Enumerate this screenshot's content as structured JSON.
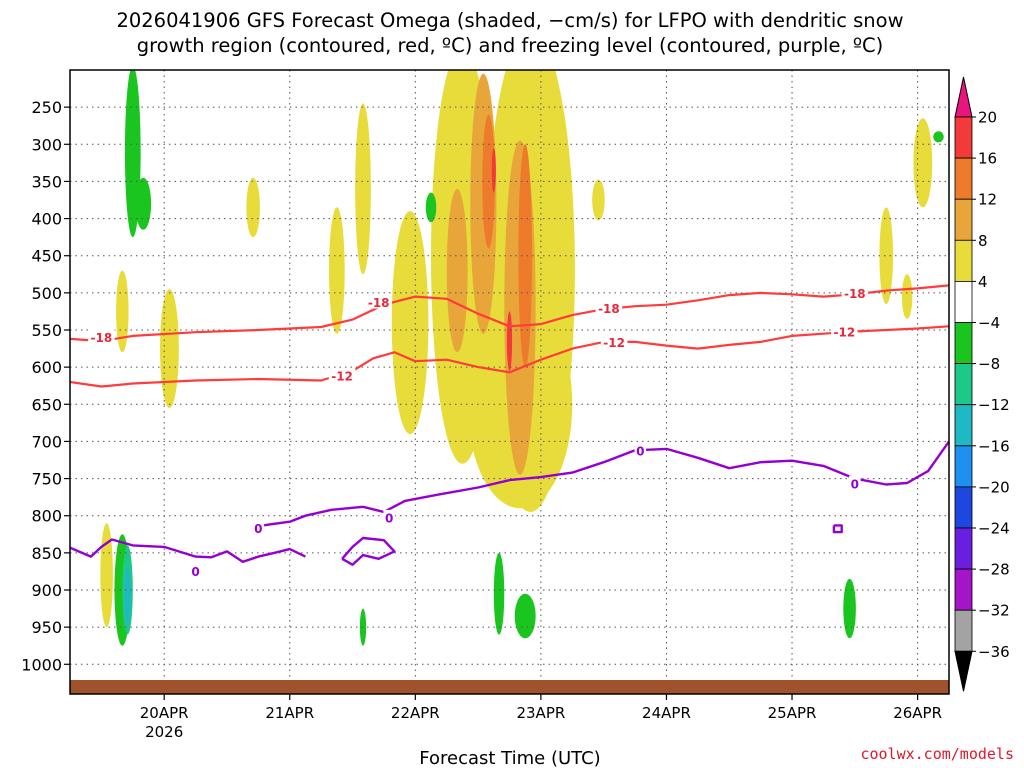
{
  "title": {
    "line1": "2026041906 GFS Forecast Omega (shaded, −cm/s) for LFPO with dendritic snow",
    "line2": "growth region (contoured, red, ºC) and freezing level (contoured, purple, ºC)"
  },
  "xlabel": "Forecast Time (UTC)",
  "credit": "coolwx.com/models",
  "colors": {
    "frame": "#000000",
    "grid": "#555555",
    "ground": "#a0522d",
    "dgz_line": "#ff3b3b",
    "dgz_label": "#e8283a",
    "freezing_line": "#9400d3"
  },
  "chart_data": {
    "type": "heatmap",
    "title": "2026041906 GFS Forecast Omega (shaded, −cm/s) for LFPO with dendritic snow growth region (contoured, red, ºC) and freezing level (contoured, purple, ºC)",
    "xlabel": "Forecast Time (UTC)",
    "ylabel": "Pressure (hPa)",
    "x_range_hours": [
      0,
      168
    ],
    "y_range_hpa": [
      200,
      1040
    ],
    "x_ticks": [
      {
        "label": "20APR",
        "sub": "2026",
        "hour": 18
      },
      {
        "label": "21APR",
        "hour": 42
      },
      {
        "label": "22APR",
        "hour": 66
      },
      {
        "label": "23APR",
        "hour": 90
      },
      {
        "label": "24APR",
        "hour": 114
      },
      {
        "label": "25APR",
        "hour": 138
      },
      {
        "label": "26APR",
        "hour": 162
      }
    ],
    "y_ticks": [
      250,
      300,
      350,
      400,
      450,
      500,
      550,
      600,
      650,
      700,
      750,
      800,
      850,
      900,
      950,
      1000
    ],
    "colorbar": {
      "labels": [
        "20",
        "16",
        "12",
        "8",
        "4",
        "−4",
        "−8",
        "−12",
        "−16",
        "−20",
        "−24",
        "−28",
        "−32",
        "−36"
      ],
      "bands": [
        {
          "range": "16 to 20",
          "color": "#f23a3a"
        },
        {
          "range": "12 to 16",
          "color": "#ee7a2c"
        },
        {
          "range": "8 to 12",
          "color": "#e8a63a"
        },
        {
          "range": "4 to 8",
          "color": "#e8dc3a"
        },
        {
          "range": "-4 to 4",
          "color": "#ffffff"
        },
        {
          "range": "-8 to -4",
          "color": "#19c51e"
        },
        {
          "range": "-12 to -8",
          "color": "#1ec888"
        },
        {
          "range": "-16 to -12",
          "color": "#1fb9c6"
        },
        {
          "range": "-20 to -16",
          "color": "#1e90ee"
        },
        {
          "range": "-24 to -20",
          "color": "#1e47e0"
        },
        {
          "range": "-28 to -24",
          "color": "#6a1ee0"
        },
        {
          "range": "-32 to -28",
          "color": "#a515c8"
        },
        {
          "range": "-36 to -32",
          "color": "#a3a3a3"
        }
      ],
      "top_arrow_color": "#e8157d",
      "bottom_arrow_color": "#000000"
    },
    "contours": {
      "dgz_minus18": {
        "level": "-18",
        "points": [
          [
            0,
            562
          ],
          [
            6,
            565
          ],
          [
            12,
            558
          ],
          [
            24,
            553
          ],
          [
            36,
            550
          ],
          [
            48,
            546
          ],
          [
            54,
            536
          ],
          [
            60,
            516
          ],
          [
            66,
            505
          ],
          [
            72,
            508
          ],
          [
            78,
            528
          ],
          [
            84,
            545
          ],
          [
            90,
            542
          ],
          [
            96,
            530
          ],
          [
            102,
            522
          ],
          [
            108,
            518
          ],
          [
            114,
            516
          ],
          [
            120,
            510
          ],
          [
            126,
            503
          ],
          [
            132,
            500
          ],
          [
            138,
            502
          ],
          [
            144,
            505
          ],
          [
            150,
            502
          ],
          [
            156,
            497
          ],
          [
            162,
            494
          ],
          [
            168,
            490
          ]
        ],
        "labels": [
          {
            "hour": 6,
            "hpa": 560
          },
          {
            "hour": 59,
            "hpa": 513
          },
          {
            "hour": 103,
            "hpa": 521
          },
          {
            "hour": 150,
            "hpa": 501
          }
        ]
      },
      "dgz_minus12": {
        "level": "-12",
        "points": [
          [
            0,
            620
          ],
          [
            6,
            626
          ],
          [
            12,
            622
          ],
          [
            24,
            618
          ],
          [
            36,
            616
          ],
          [
            48,
            618
          ],
          [
            54,
            605
          ],
          [
            58,
            588
          ],
          [
            62,
            580
          ],
          [
            66,
            592
          ],
          [
            72,
            590
          ],
          [
            78,
            600
          ],
          [
            84,
            607
          ],
          [
            90,
            590
          ],
          [
            96,
            575
          ],
          [
            102,
            566
          ],
          [
            108,
            566
          ],
          [
            114,
            571
          ],
          [
            120,
            575
          ],
          [
            126,
            570
          ],
          [
            132,
            566
          ],
          [
            138,
            558
          ],
          [
            144,
            555
          ],
          [
            150,
            552
          ],
          [
            156,
            550
          ],
          [
            162,
            548
          ],
          [
            168,
            545
          ]
        ],
        "labels": [
          {
            "hour": 52,
            "hpa": 612
          },
          {
            "hour": 104,
            "hpa": 567
          },
          {
            "hour": 148,
            "hpa": 553
          }
        ]
      },
      "freezing": {
        "level": "0",
        "segments": [
          [
            [
              0,
              843
            ],
            [
              4,
              855
            ],
            [
              6,
              842
            ],
            [
              8,
              832
            ],
            [
              12,
              840
            ],
            [
              18,
              842
            ],
            [
              24,
              855
            ],
            [
              27,
              856
            ],
            [
              30,
              848
            ],
            [
              33,
              862
            ],
            [
              36,
              855
            ],
            [
              39,
              850
            ],
            [
              42,
              845
            ],
            [
              45,
              855
            ]
          ],
          [
            [
              35,
              815
            ],
            [
              38,
              812
            ],
            [
              42,
              808
            ],
            [
              45,
              800
            ],
            [
              50,
              792
            ],
            [
              56,
              788
            ],
            [
              60,
              795
            ],
            [
              64,
              780
            ],
            [
              70,
              772
            ],
            [
              78,
              762
            ],
            [
              84,
              752
            ],
            [
              90,
              748
            ],
            [
              96,
              742
            ],
            [
              102,
              728
            ],
            [
              108,
              712
            ],
            [
              114,
              710
            ],
            [
              120,
              722
            ],
            [
              126,
              736
            ],
            [
              132,
              728
            ],
            [
              138,
              726
            ],
            [
              144,
              733
            ],
            [
              150,
              750
            ],
            [
              156,
              758
            ],
            [
              160,
              756
            ],
            [
              164,
              740
            ],
            [
              168,
              700
            ]
          ],
          [
            [
              52,
              858
            ],
            [
              54,
              842
            ],
            [
              56,
              830
            ],
            [
              60,
              833
            ],
            [
              62,
              848
            ],
            [
              59,
              858
            ],
            [
              56,
              853
            ],
            [
              54,
              866
            ],
            [
              52,
              858
            ]
          ],
          [
            [
              146,
              813
            ],
            [
              147.5,
              813
            ],
            [
              147.5,
              822
            ],
            [
              146,
              822
            ],
            [
              146,
              813
            ]
          ]
        ],
        "labels": [
          {
            "hour": 24,
            "hpa": 875
          },
          {
            "hour": 36,
            "hpa": 817
          },
          {
            "hour": 61,
            "hpa": 803
          },
          {
            "hour": 109,
            "hpa": 713
          },
          {
            "hour": 150,
            "hpa": 757
          }
        ]
      }
    },
    "omega_blobs": [
      {
        "band": "4 to 8",
        "color": "#e8dc3a",
        "hour": 7,
        "hpa": 880,
        "dh": 1.2,
        "dp": 140
      },
      {
        "band": "4 to 8",
        "color": "#e8dc3a",
        "hour": 10,
        "hpa": 525,
        "dh": 1.2,
        "dp": 110
      },
      {
        "band": "4 to 8",
        "color": "#e8dc3a",
        "hour": 19,
        "hpa": 575,
        "dh": 1.8,
        "dp": 160
      },
      {
        "band": "4 to 8",
        "color": "#e8dc3a",
        "hour": 35,
        "hpa": 385,
        "dh": 1.3,
        "dp": 80
      },
      {
        "band": "4 to 8",
        "color": "#e8dc3a",
        "hour": 51,
        "hpa": 470,
        "dh": 1.5,
        "dp": 170
      },
      {
        "band": "4 to 8",
        "color": "#e8dc3a",
        "hour": 56,
        "hpa": 360,
        "dh": 1.5,
        "dp": 230
      },
      {
        "band": "4 to 8",
        "color": "#e8dc3a",
        "hour": 65,
        "hpa": 540,
        "dh": 3.5,
        "dp": 300
      },
      {
        "band": "4 to 8",
        "color": "#e8dc3a",
        "hour": 75,
        "hpa": 450,
        "dh": 6.0,
        "dp": 560
      },
      {
        "band": "4 to 8",
        "color": "#e8dc3a",
        "hour": 88,
        "hpa": 470,
        "dh": 8.5,
        "dp": 650
      },
      {
        "band": "4 to 8",
        "color": "#e8dc3a",
        "hour": 86,
        "hpa": 650,
        "dh": 10.0,
        "dp": 280
      },
      {
        "band": "4 to 8",
        "color": "#e8dc3a",
        "hour": 101,
        "hpa": 375,
        "dh": 1.2,
        "dp": 55
      },
      {
        "band": "4 to 8",
        "color": "#e8dc3a",
        "hour": 163,
        "hpa": 325,
        "dh": 1.8,
        "dp": 120
      },
      {
        "band": "4 to 8",
        "color": "#e8dc3a",
        "hour": 156,
        "hpa": 450,
        "dh": 1.3,
        "dp": 130
      },
      {
        "band": "4 to 8",
        "color": "#e8dc3a",
        "hour": 160,
        "hpa": 505,
        "dh": 1.0,
        "dp": 60
      },
      {
        "band": "4 to 8",
        "color": "#e8dc3a",
        "hour": 171,
        "hpa": 340,
        "dh": 1.3,
        "dp": 65
      },
      {
        "band": "4 to 8",
        "color": "#e8dc3a",
        "hour": 175,
        "hpa": 690,
        "dh": 1.5,
        "dp": 30
      },
      {
        "band": "8 to 12",
        "color": "#e8a63a",
        "hour": 79,
        "hpa": 380,
        "dh": 2.5,
        "dp": 350
      },
      {
        "band": "8 to 12",
        "color": "#e8a63a",
        "hour": 86,
        "hpa": 520,
        "dh": 3.0,
        "dp": 450
      },
      {
        "band": "8 to 12",
        "color": "#e8a63a",
        "hour": 74,
        "hpa": 470,
        "dh": 2.0,
        "dp": 220
      },
      {
        "band": "12 to 16",
        "color": "#ee7a2c",
        "hour": 80,
        "hpa": 350,
        "dh": 1.2,
        "dp": 180
      },
      {
        "band": "12 to 16",
        "color": "#ee7a2c",
        "hour": 87,
        "hpa": 450,
        "dh": 1.3,
        "dp": 300
      },
      {
        "band": "16 to 20",
        "color": "#f23a3a",
        "hour": 81,
        "hpa": 335,
        "dh": 0.4,
        "dp": 60
      },
      {
        "band": "16 to 20",
        "color": "#f23a3a",
        "hour": 84,
        "hpa": 565,
        "dh": 0.5,
        "dp": 80
      },
      {
        "band": "-8 to -4",
        "color": "#19c51e",
        "hour": 12,
        "hpa": 310,
        "dh": 1.5,
        "dp": 230
      },
      {
        "band": "-8 to -4",
        "color": "#19c51e",
        "hour": 14,
        "hpa": 380,
        "dh": 1.5,
        "dp": 70
      },
      {
        "band": "-8 to -4",
        "color": "#19c51e",
        "hour": 10,
        "hpa": 900,
        "dh": 1.5,
        "dp": 150
      },
      {
        "band": "-12 to -8",
        "color": "#1ec888",
        "hour": 11,
        "hpa": 900,
        "dh": 1.0,
        "dp": 120
      },
      {
        "band": "-16 to -12",
        "color": "#1fb9c6",
        "hour": 11,
        "hpa": 910,
        "dh": 0.6,
        "dp": 80
      },
      {
        "band": "-8 to -4",
        "color": "#19c51e",
        "hour": 69,
        "hpa": 385,
        "dh": 1.0,
        "dp": 40
      },
      {
        "band": "-8 to -4",
        "color": "#19c51e",
        "hour": 82,
        "hpa": 905,
        "dh": 1.0,
        "dp": 110
      },
      {
        "band": "-8 to -4",
        "color": "#19c51e",
        "hour": 87,
        "hpa": 935,
        "dh": 2.0,
        "dp": 60
      },
      {
        "band": "-8 to -4",
        "color": "#19c51e",
        "hour": 56,
        "hpa": 950,
        "dh": 0.6,
        "dp": 50
      },
      {
        "band": "-8 to -4",
        "color": "#19c51e",
        "hour": 149,
        "hpa": 925,
        "dh": 1.2,
        "dp": 80
      },
      {
        "band": "-8 to -4",
        "color": "#19c51e",
        "hour": 166,
        "hpa": 290,
        "dh": 1.0,
        "dp": 15
      }
    ]
  }
}
